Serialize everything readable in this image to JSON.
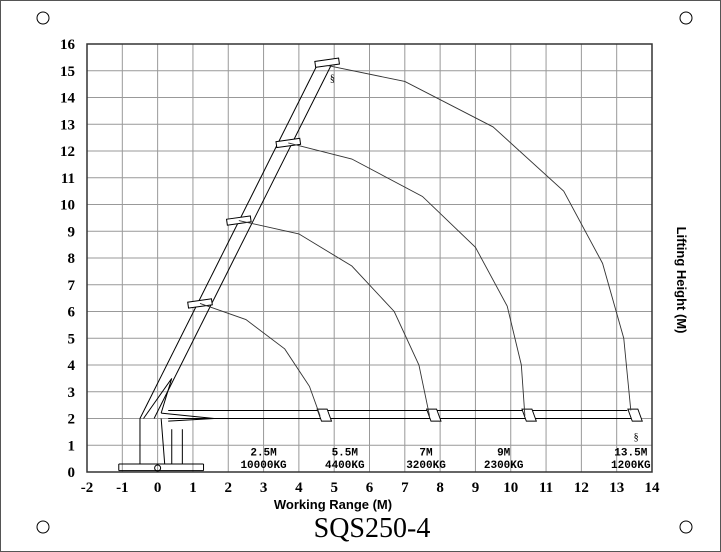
{
  "chart_data": {
    "type": "line",
    "title": "SQS250-4",
    "xlabel": "Working Range (M)",
    "ylabel": "Lifting Height (M)",
    "xlim": [
      -2,
      14
    ],
    "ylim": [
      0,
      16
    ],
    "grid": true,
    "xticks": [
      "-2",
      "-1",
      "0",
      "1",
      "2",
      "3",
      "4",
      "5",
      "6",
      "7",
      "8",
      "9",
      "10",
      "11",
      "12",
      "13",
      "14"
    ],
    "yticks": [
      "0",
      "1",
      "2",
      "3",
      "4",
      "5",
      "6",
      "7",
      "8",
      "9",
      "10",
      "11",
      "12",
      "13",
      "14",
      "15",
      "16"
    ],
    "series": [
      {
        "points": [
          [
            1.2,
            6.3
          ],
          [
            2.5,
            5.7
          ],
          [
            3.6,
            4.6
          ],
          [
            4.3,
            3.2
          ],
          [
            4.6,
            2.1
          ]
        ]
      },
      {
        "points": [
          [
            2.3,
            9.4
          ],
          [
            4,
            8.9
          ],
          [
            5.5,
            7.7
          ],
          [
            6.7,
            6
          ],
          [
            7.4,
            4
          ],
          [
            7.7,
            2.1
          ]
        ]
      },
      {
        "points": [
          [
            3.7,
            12.3
          ],
          [
            5.5,
            11.7
          ],
          [
            7.5,
            10.3
          ],
          [
            9,
            8.4
          ],
          [
            9.9,
            6.2
          ],
          [
            10.3,
            4
          ],
          [
            10.4,
            2.1
          ]
        ]
      },
      {
        "points": [
          [
            4.8,
            15.2
          ],
          [
            7,
            14.6
          ],
          [
            9.5,
            12.9
          ],
          [
            11.5,
            10.5
          ],
          [
            12.6,
            7.8
          ],
          [
            13.2,
            5
          ],
          [
            13.4,
            2.3
          ]
        ]
      }
    ],
    "annotations": [
      {
        "x": 3.0,
        "range": "2.5M",
        "load": "10000KG"
      },
      {
        "x": 5.3,
        "range": "5.5M",
        "load": "4400KG"
      },
      {
        "x": 7.6,
        "range": "7M",
        "load": "3200KG"
      },
      {
        "x": 9.8,
        "range": "9M",
        "load": "2300KG"
      },
      {
        "x": 13.4,
        "range": "13.5M",
        "load": "1200KG"
      }
    ],
    "colors": {
      "grid": "#999999",
      "line": "#000000"
    }
  }
}
